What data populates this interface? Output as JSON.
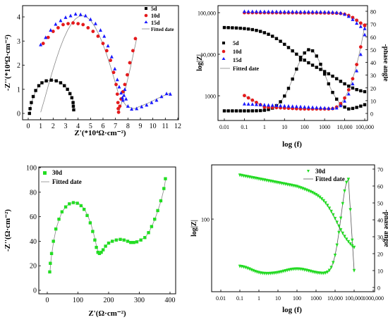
{
  "chart_data": [
    {
      "type": "scatter",
      "xlabel": "Z'(*10⁴Ω·cm⁻²)",
      "ylabel": "-Z''(*10⁴Ω·cm⁻²)",
      "xlim": [
        0,
        12
      ],
      "ylim": [
        -0.2,
        4.5
      ],
      "xticks": [
        "0",
        "1",
        "2",
        "3",
        "4",
        "5",
        "6",
        "7",
        "8",
        "9",
        "10",
        "11",
        "12"
      ],
      "yticks": [
        "0",
        "1",
        "2",
        "3",
        "4"
      ],
      "legend_position": "top-right",
      "series": [
        {
          "name": "5d",
          "color": "#000000",
          "marker": "square",
          "points": [
            [
              0.1,
              0.0
            ],
            [
              0.15,
              0.2
            ],
            [
              0.25,
              0.45
            ],
            [
              0.4,
              0.7
            ],
            [
              0.6,
              0.95
            ],
            [
              0.85,
              1.15
            ],
            [
              1.1,
              1.27
            ],
            [
              1.45,
              1.35
            ],
            [
              1.85,
              1.38
            ],
            [
              2.25,
              1.35
            ],
            [
              2.6,
              1.27
            ],
            [
              2.9,
              1.15
            ],
            [
              3.15,
              1.0
            ],
            [
              3.35,
              0.82
            ],
            [
              3.5,
              0.65
            ],
            [
              3.6,
              0.45
            ],
            [
              3.62,
              0.3
            ],
            [
              3.65,
              0.15
            ]
          ]
        },
        {
          "name": "10d",
          "color": "#e41a1c",
          "marker": "circle",
          "points": [
            [
              1.2,
              2.9
            ],
            [
              1.6,
              3.15
            ],
            [
              2.0,
              3.4
            ],
            [
              2.4,
              3.55
            ],
            [
              2.8,
              3.68
            ],
            [
              3.2,
              3.72
            ],
            [
              3.6,
              3.75
            ],
            [
              4.0,
              3.72
            ],
            [
              4.4,
              3.68
            ],
            [
              4.8,
              3.55
            ],
            [
              5.2,
              3.4
            ],
            [
              5.6,
              3.2
            ],
            [
              6.0,
              2.9
            ],
            [
              6.3,
              2.6
            ],
            [
              6.6,
              2.2
            ],
            [
              6.85,
              1.7
            ],
            [
              7.05,
              1.2
            ],
            [
              7.15,
              0.8
            ],
            [
              7.2,
              0.45
            ],
            [
              7.22,
              0.2
            ],
            [
              7.25,
              0.05
            ],
            [
              7.35,
              0.3
            ],
            [
              7.45,
              0.6
            ],
            [
              7.6,
              0.9
            ],
            [
              7.75,
              1.2
            ],
            [
              7.95,
              1.6
            ],
            [
              8.15,
              2.1
            ],
            [
              8.4,
              2.6
            ],
            [
              8.6,
              3.1
            ]
          ]
        },
        {
          "name": "15d",
          "color": "#1a1aff",
          "marker": "triangle",
          "points": [
            [
              1.0,
              2.85
            ],
            [
              1.4,
              3.15
            ],
            [
              1.8,
              3.45
            ],
            [
              2.2,
              3.7
            ],
            [
              2.6,
              3.85
            ],
            [
              3.0,
              3.98
            ],
            [
              3.4,
              4.05
            ],
            [
              3.8,
              4.12
            ],
            [
              4.2,
              4.1
            ],
            [
              4.6,
              4.05
            ],
            [
              5.0,
              3.9
            ],
            [
              5.4,
              3.72
            ],
            [
              5.8,
              3.45
            ],
            [
              6.1,
              3.2
            ],
            [
              6.4,
              2.8
            ],
            [
              6.7,
              2.35
            ],
            [
              6.95,
              1.85
            ],
            [
              7.15,
              1.4
            ],
            [
              7.3,
              1.1
            ],
            [
              7.45,
              0.85
            ],
            [
              7.55,
              0.65
            ],
            [
              7.6,
              0.55
            ],
            [
              7.68,
              0.75
            ],
            [
              7.75,
              1.0
            ],
            [
              7.85,
              0.6
            ],
            [
              8.0,
              0.3
            ],
            [
              8.3,
              0.18
            ],
            [
              8.7,
              0.2
            ],
            [
              9.1,
              0.28
            ],
            [
              9.5,
              0.35
            ],
            [
              9.9,
              0.45
            ],
            [
              10.3,
              0.55
            ],
            [
              10.7,
              0.7
            ],
            [
              11.1,
              0.82
            ],
            [
              11.4,
              0.8
            ]
          ]
        }
      ]
    },
    {
      "type": "line",
      "xlabel": "log (f)",
      "ylabel": "log|Z|",
      "y2label": "-phase angle",
      "xlim": [
        0.01,
        100000
      ],
      "xscale": "log",
      "xticks": [
        "0.01",
        "0.1",
        "1",
        "10",
        "100",
        "1000",
        "10,000",
        "100,000"
      ],
      "yticks": [
        "1000",
        "10,000",
        "100,000"
      ],
      "y2ticks": [
        "0",
        "10",
        "20",
        "30",
        "40",
        "50",
        "60",
        "70",
        "80"
      ],
      "y2lim": [
        -10,
        80
      ],
      "legend_position": "center-left",
      "series": [
        {
          "name": "5d",
          "color": "#000000",
          "marker": "square"
        },
        {
          "name": "10d",
          "color": "#e41a1c",
          "marker": "circle"
        },
        {
          "name": "15d",
          "color": "#1a1aff",
          "marker": "triangle"
        }
      ]
    },
    {
      "type": "scatter",
      "xlabel": "Z'(Ω·cm⁻²)",
      "ylabel": "-Z''(Ω·cm⁻²)",
      "xlim": [
        -20,
        410
      ],
      "ylim": [
        0,
        100
      ],
      "xticks": [
        "0",
        "100",
        "200",
        "300",
        "400"
      ],
      "yticks": [
        "0",
        "20",
        "40",
        "60",
        "80",
        "100"
      ],
      "legend_position": "top-left",
      "series": [
        {
          "name": "30d",
          "color": "#22dd22",
          "marker": "square",
          "points": [
            [
              8,
              15
            ],
            [
              10,
              22
            ],
            [
              14,
              30
            ],
            [
              20,
              40
            ],
            [
              28,
              50
            ],
            [
              38,
              58
            ],
            [
              48,
              64
            ],
            [
              60,
              68
            ],
            [
              72,
              70.5
            ],
            [
              85,
              71.5
            ],
            [
              98,
              71
            ],
            [
              110,
              69
            ],
            [
              120,
              66
            ],
            [
              130,
              61
            ],
            [
              140,
              55
            ],
            [
              148,
              48
            ],
            [
              155,
              41
            ],
            [
              160,
              35
            ],
            [
              165,
              31
            ],
            [
              170,
              30
            ],
            [
              176,
              31
            ],
            [
              182,
              33
            ],
            [
              190,
              36
            ],
            [
              200,
              38.5
            ],
            [
              212,
              40
            ],
            [
              225,
              41
            ],
            [
              238,
              41.5
            ],
            [
              250,
              41
            ],
            [
              262,
              40
            ],
            [
              272,
              39
            ],
            [
              282,
              39
            ],
            [
              292,
              39.5
            ],
            [
              305,
              41
            ],
            [
              318,
              43
            ],
            [
              330,
              47
            ],
            [
              340,
              52
            ],
            [
              350,
              58
            ],
            [
              360,
              65
            ],
            [
              370,
              73
            ],
            [
              380,
              83
            ],
            [
              385,
              91
            ]
          ]
        }
      ]
    },
    {
      "type": "line",
      "xlabel": "log (f)",
      "ylabel": "log|Z|",
      "y2label": "-phase angle",
      "xscale": "log",
      "xticks": [
        "0.01",
        "0.1",
        "1",
        "10",
        "100",
        "1000",
        "10,000",
        "100,000",
        "1000,000"
      ],
      "yticks": [
        "100"
      ],
      "y2ticks": [
        "0",
        "10",
        "20",
        "30",
        "40",
        "50",
        "60",
        "70"
      ],
      "y2lim": [
        0,
        70
      ],
      "legend_position": "top-right",
      "series": [
        {
          "name": "30d",
          "color": "#22dd22",
          "marker": "triangle-down"
        }
      ]
    }
  ],
  "legends": {
    "p1": [
      "5d",
      "10d",
      "15d",
      "Fitted date"
    ],
    "p2": [
      "5d",
      "10d",
      "15d",
      "Fitted date"
    ],
    "p3": [
      "30d",
      "Fitted date"
    ],
    "p4": [
      "30d",
      "Fitted date"
    ]
  }
}
